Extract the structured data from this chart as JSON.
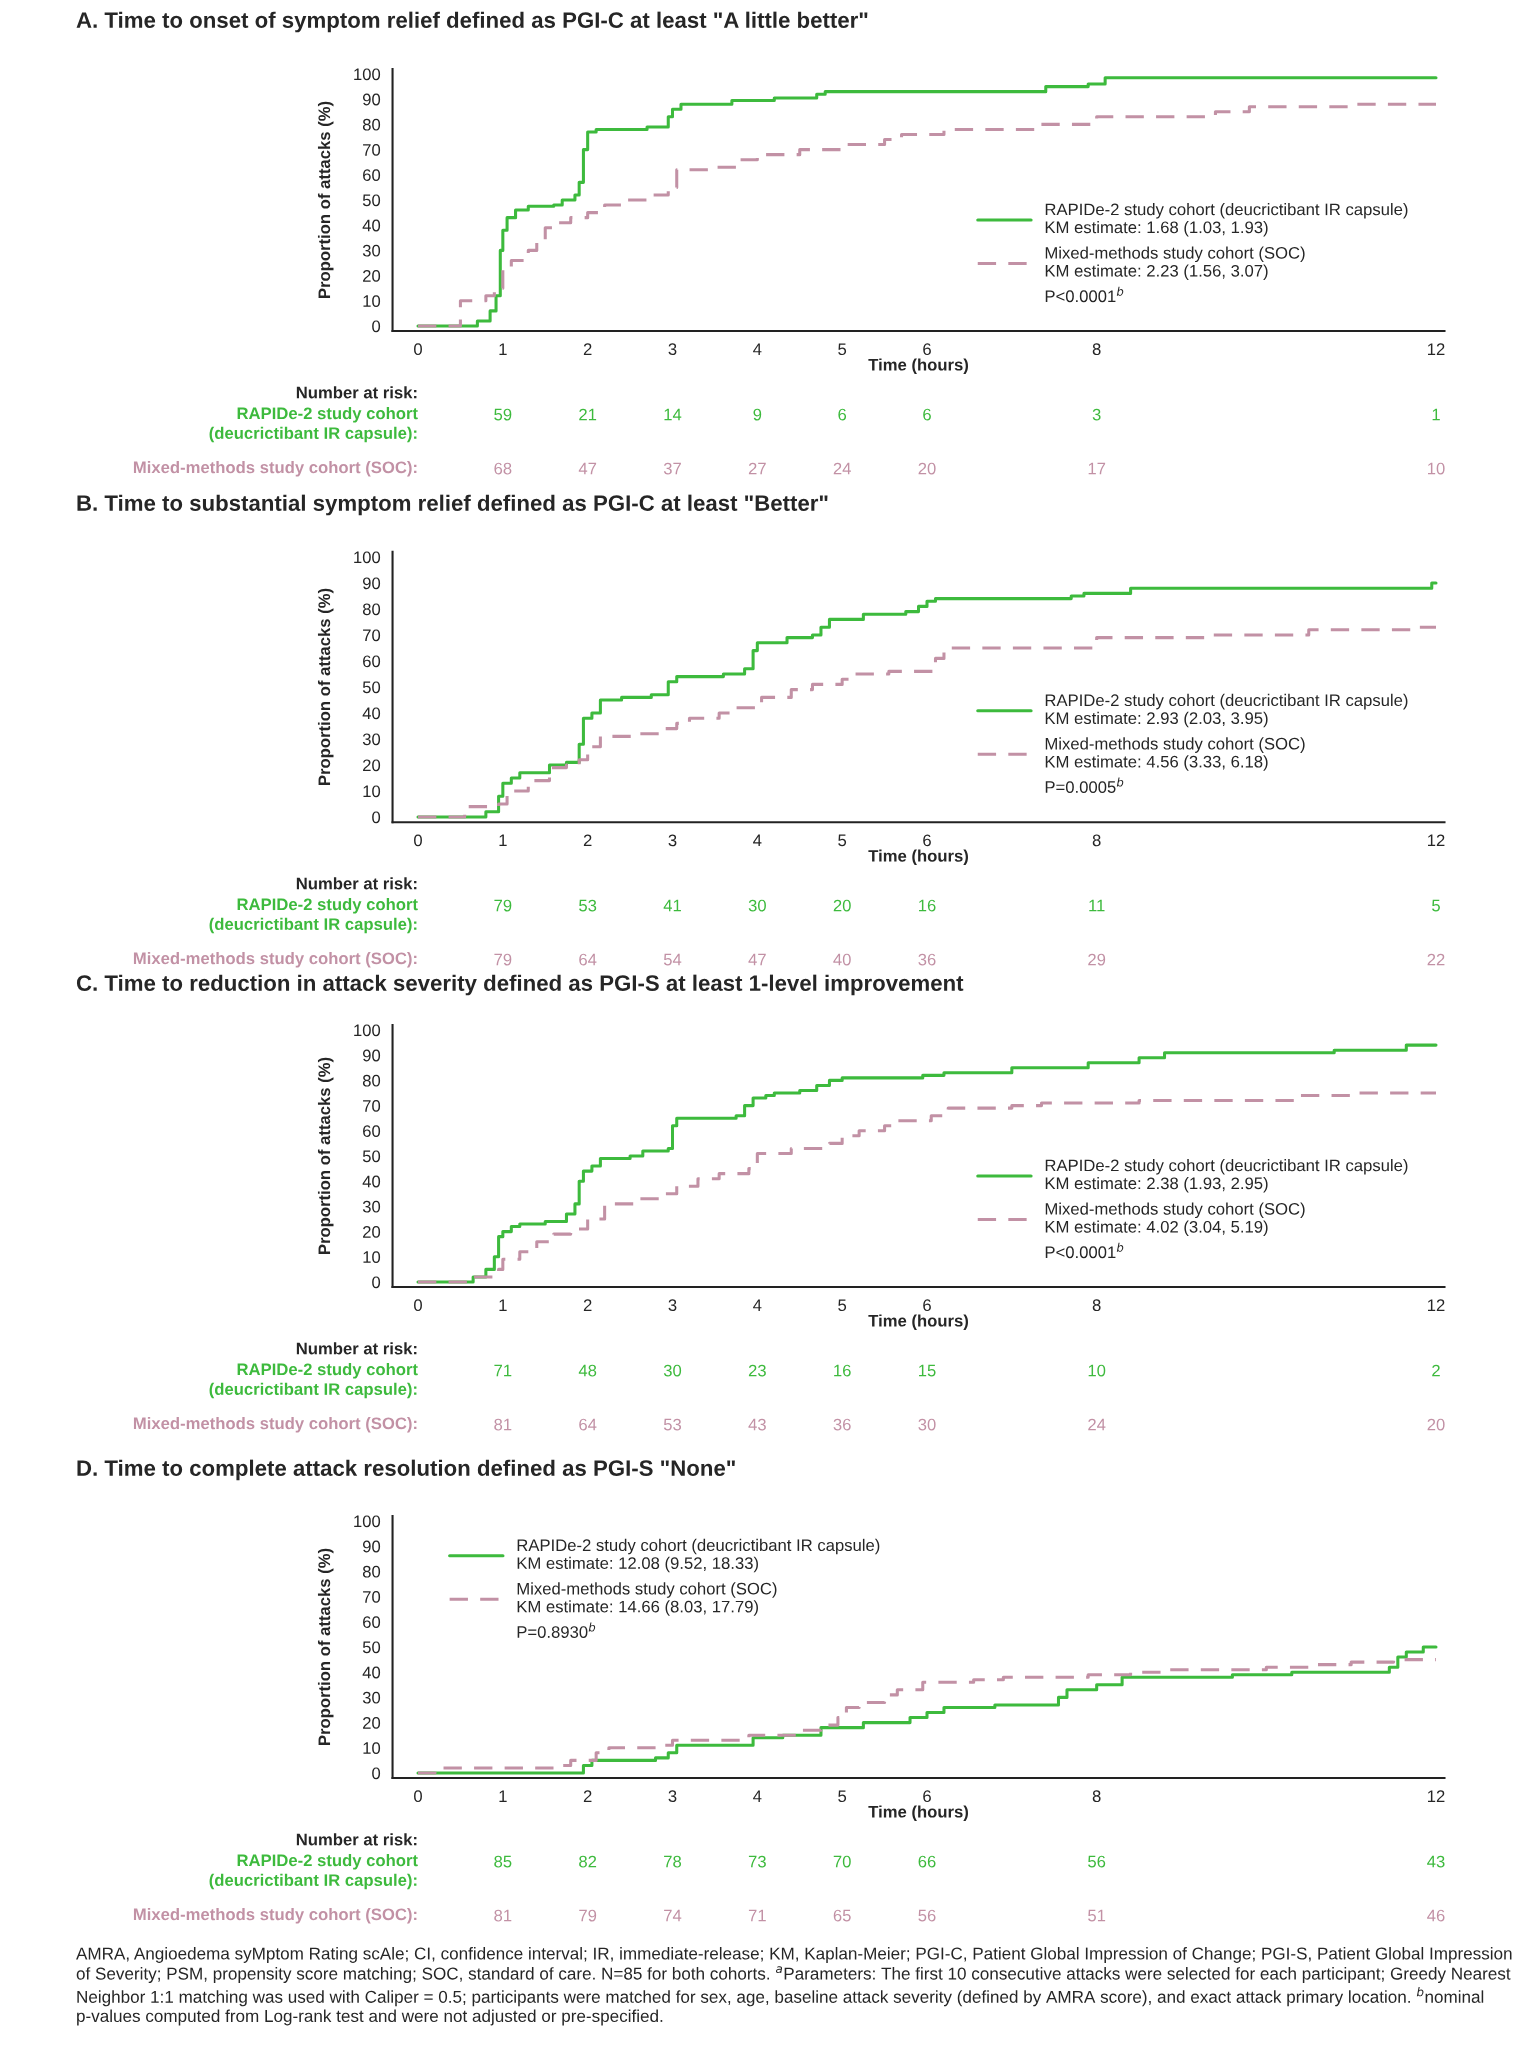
{
  "chart_data": [
    {
      "type": "step",
      "title": "A. Time to onset of symptom relief defined as PGI-C at least \"A little better\"",
      "xlabel": "Time (hours)",
      "ylabel": "Proportion of attacks (%)",
      "xlim": [
        -0.3,
        12.1
      ],
      "xticks": [
        0,
        1,
        2,
        3,
        4,
        5,
        6,
        8,
        12
      ],
      "ylim": [
        -2,
        102
      ],
      "yticks": [
        0,
        10,
        20,
        30,
        40,
        50,
        60,
        70,
        80,
        90,
        100
      ],
      "grid": false,
      "legend": "lower right",
      "series": [
        {
          "name": "RAPIDe-2 study cohort (deucrictibant IR capsule)",
          "color": "#3dba3d",
          "line_style": "solid",
          "x": [
            0,
            0.6,
            0.7,
            0.85,
            0.92,
            0.97,
            1.0,
            1.05,
            1.15,
            1.3,
            1.6,
            1.7,
            1.85,
            1.9,
            1.95,
            2.0,
            2.1,
            2.7,
            2.95,
            3.0,
            3.1,
            3.7,
            4.2,
            4.7,
            4.8,
            7.4,
            7.9,
            8.1,
            12
          ],
          "values": [
            0,
            0,
            2,
            6,
            12,
            30,
            38,
            43,
            46,
            47.5,
            48,
            50,
            52,
            57,
            70,
            77,
            78,
            79,
            83,
            86,
            88,
            89.5,
            90.5,
            92,
            93,
            95,
            96,
            98.5,
            98.5
          ]
        },
        {
          "name": "Mixed-methods study cohort (SOC)",
          "color": "#c291a5",
          "line_style": "dashed",
          "x": [
            0,
            0.5,
            0.8,
            0.9,
            1.0,
            1.1,
            1.3,
            1.4,
            1.5,
            1.6,
            1.8,
            2.0,
            2.2,
            2.4,
            2.7,
            2.95,
            3.05,
            3.5,
            3.8,
            4.0,
            4.5,
            5.0,
            5.5,
            5.7,
            6.2,
            7.3,
            8.0,
            9.4,
            9.8,
            11.0,
            12
          ],
          "values": [
            0,
            10,
            12,
            15,
            23,
            26,
            30,
            34,
            39,
            41,
            43,
            45,
            48,
            50,
            52,
            55,
            62,
            63,
            66,
            68,
            70,
            72,
            74,
            76,
            78,
            80,
            83,
            85,
            87,
            88,
            88
          ]
        }
      ],
      "annotations": [
        "KM estimate: 1.68 (1.03, 1.93)",
        "KM estimate: 2.23 (1.56, 3.07)",
        "P<0.0001$^{b}$",
        "Number at risk:",
        "RAPIDe-2 study cohort\n(deucrictibant IR capsule):",
        "59",
        "21",
        "14",
        "9",
        "6",
        "6",
        "3",
        "1",
        "Mixed-methods study cohort (SOC):",
        "68",
        "47",
        "37",
        "27",
        "24",
        "20",
        "17",
        "10"
      ]
    },
    {
      "type": "step",
      "title": "B. Time to substantial symptom relief defined as PGI-C at least \"Better\"",
      "xlabel": "Time (hours)",
      "ylabel": "Proportion of attacks (%)",
      "xlim": [
        -0.3,
        12.1
      ],
      "xticks": [
        0,
        1,
        2,
        3,
        4,
        5,
        6,
        8,
        12
      ],
      "ylim": [
        -2,
        102
      ],
      "yticks": [
        0,
        10,
        20,
        30,
        40,
        50,
        60,
        70,
        80,
        90,
        100
      ],
      "grid": false,
      "legend": "lower right",
      "series": [
        {
          "name": "RAPIDe-2 study cohort (deucrictibant IR capsule)",
          "color": "#3dba3d",
          "line_style": "solid",
          "x": [
            0,
            0.75,
            0.8,
            0.95,
            1.0,
            1.1,
            1.2,
            1.55,
            1.75,
            1.9,
            1.95,
            2.05,
            2.15,
            2.4,
            2.75,
            2.95,
            3.05,
            3.6,
            3.85,
            3.95,
            4.0,
            4.35,
            4.65,
            4.75,
            4.85,
            5.25,
            5.75,
            5.9,
            6.0,
            6.1,
            7.7,
            7.85,
            8.4,
            11.95,
            12
          ],
          "values": [
            0,
            0,
            2,
            8,
            13,
            15,
            17,
            20,
            21,
            28,
            38,
            40,
            45,
            46,
            47,
            52,
            54,
            55,
            57,
            64,
            67,
            69,
            70,
            73,
            76,
            78,
            79,
            81,
            83,
            84,
            85,
            86,
            88,
            90,
            90
          ]
        },
        {
          "name": "Mixed-methods study cohort (SOC)",
          "color": "#c291a5",
          "line_style": "dashed",
          "x": [
            0,
            0.55,
            0.95,
            1.05,
            1.3,
            1.55,
            1.75,
            1.9,
            2.0,
            2.15,
            2.6,
            2.9,
            3.05,
            3.2,
            3.55,
            3.75,
            4.05,
            4.4,
            4.65,
            5.0,
            5.1,
            5.55,
            6.1,
            6.2,
            8.0,
            9.3,
            10.5,
            11.8,
            12
          ],
          "values": [
            0,
            4,
            5,
            10,
            14,
            19,
            20,
            22,
            27,
            31,
            32,
            34,
            36,
            38,
            40,
            42,
            46,
            49,
            51,
            53,
            55,
            56,
            61,
            65,
            69,
            70,
            72,
            73,
            73
          ]
        }
      ],
      "annotations": [
        "KM estimate: 2.93 (2.03, 3.95)",
        "KM estimate: 4.56 (3.33, 6.18)",
        "P=0.0005$^{b}$",
        "Number at risk:",
        "RAPIDe-2 study cohort\n(deucrictibant IR capsule):",
        "79",
        "53",
        "41",
        "30",
        "20",
        "16",
        "11",
        "5",
        "Mixed-methods study cohort (SOC):",
        "79",
        "64",
        "54",
        "47",
        "40",
        "36",
        "29",
        "22"
      ]
    },
    {
      "type": "step",
      "title": "C. Time to reduction in attack severity defined as PGI-S at least 1-level improvement",
      "xlabel": "Time (hours)",
      "ylabel": "Proportion of attacks (%)",
      "xlim": [
        -0.3,
        12.1
      ],
      "xticks": [
        0,
        1,
        2,
        3,
        4,
        5,
        6,
        8,
        12
      ],
      "ylim": [
        -2,
        102
      ],
      "yticks": [
        0,
        10,
        20,
        30,
        40,
        50,
        60,
        70,
        80,
        90,
        100
      ],
      "grid": false,
      "legend": "lower right",
      "series": [
        {
          "name": "RAPIDe-2 study cohort (deucrictibant IR capsule)",
          "color": "#3dba3d",
          "line_style": "solid",
          "x": [
            0,
            0.6,
            0.65,
            0.8,
            0.9,
            0.95,
            1.0,
            1.1,
            1.2,
            1.5,
            1.75,
            1.85,
            1.9,
            1.95,
            2.05,
            2.15,
            2.5,
            2.65,
            2.95,
            3.0,
            3.05,
            3.75,
            3.85,
            3.95,
            4.1,
            4.2,
            4.5,
            4.7,
            4.85,
            5.0,
            5.95,
            6.2,
            7.0,
            7.9,
            8.5,
            8.8,
            10.8,
            11.65,
            12
          ],
          "values": [
            0,
            0,
            2,
            5,
            10,
            18,
            20,
            22,
            23,
            24,
            27,
            31,
            40,
            44,
            46,
            49,
            50,
            52,
            53,
            62,
            65,
            66,
            70,
            73,
            74,
            75,
            76,
            78,
            80,
            81,
            82,
            83,
            85,
            87,
            89,
            91,
            92,
            94,
            94
          ]
        },
        {
          "name": "Mixed-methods study cohort (SOC)",
          "color": "#c291a5",
          "line_style": "dashed",
          "x": [
            0,
            0.6,
            0.95,
            1.0,
            1.2,
            1.4,
            1.6,
            1.8,
            2.0,
            2.2,
            2.55,
            2.9,
            3.05,
            3.3,
            3.55,
            3.9,
            4.0,
            4.4,
            4.85,
            5.0,
            5.2,
            5.5,
            5.6,
            6.05,
            6.25,
            7.0,
            7.35,
            8.5,
            10.4,
            11.05,
            12
          ],
          "values": [
            0,
            2,
            5,
            9,
            12,
            16,
            19,
            21,
            25,
            31,
            33,
            35,
            38,
            41,
            43,
            45,
            51,
            53,
            55,
            58,
            60,
            62,
            64,
            66,
            69,
            70,
            71,
            72,
            74,
            75,
            75
          ]
        }
      ],
      "annotations": [
        "KM estimate: 2.38 (1.93, 2.95)",
        "KM estimate: 4.02 (3.04, 5.19)",
        "P<0.0001$^{b}$",
        "Number at risk:",
        "RAPIDe-2 study cohort\n(deucrictibant IR capsule):",
        "71",
        "48",
        "30",
        "23",
        "16",
        "15",
        "10",
        "2",
        "Mixed-methods study cohort (SOC):",
        "81",
        "64",
        "53",
        "43",
        "36",
        "30",
        "24",
        "20"
      ]
    },
    {
      "type": "step",
      "title": "D. Time to complete attack resolution defined as PGI-S \"None\"",
      "xlabel": "Time (hours)",
      "ylabel": "Proportion of attacks (%)",
      "xlim": [
        -0.3,
        12.1
      ],
      "xticks": [
        0,
        1,
        2,
        3,
        4,
        5,
        6,
        8,
        12
      ],
      "ylim": [
        -2,
        102
      ],
      "yticks": [
        0,
        10,
        20,
        30,
        40,
        50,
        60,
        70,
        80,
        90,
        100
      ],
      "grid": false,
      "legend": "upper left",
      "series": [
        {
          "name": "RAPIDe-2 study cohort (deucrictibant IR capsule)",
          "color": "#3dba3d",
          "line_style": "solid",
          "x": [
            0,
            1.95,
            2.05,
            2.8,
            2.95,
            3.05,
            3.95,
            4.3,
            4.75,
            5.25,
            5.8,
            6.0,
            6.2,
            6.8,
            7.55,
            7.65,
            8.0,
            8.3,
            9.6,
            10.3,
            11.45,
            11.55,
            11.65,
            11.85,
            12
          ],
          "values": [
            0,
            3,
            5,
            6,
            8,
            11,
            14,
            15,
            18,
            20,
            22,
            24,
            26,
            27,
            30,
            33,
            35,
            38,
            39,
            40,
            42,
            46,
            48,
            50,
            50
          ]
        },
        {
          "name": "Mixed-methods study cohort (SOC)",
          "color": "#c291a5",
          "line_style": "dashed",
          "x": [
            0,
            0.2,
            1.7,
            1.8,
            2.1,
            2.25,
            2.9,
            3.0,
            3.9,
            4.5,
            4.75,
            4.95,
            5.05,
            5.2,
            5.5,
            5.65,
            5.95,
            6.55,
            6.9,
            7.9,
            8.4,
            8.8,
            10.0,
            10.5,
            11.0,
            11.5,
            12
          ],
          "values": [
            0,
            2,
            3,
            5,
            8,
            10,
            11,
            13,
            15,
            17,
            19,
            22,
            26,
            28,
            31,
            33,
            36,
            37,
            38,
            39,
            40,
            41,
            42,
            43,
            44,
            45,
            45
          ]
        }
      ],
      "annotations": [
        "KM estimate: 12.08 (9.52, 18.33)",
        "KM estimate: 14.66 (8.03, 17.79)",
        "P=0.8930$^{b}$",
        "Number at risk:",
        "RAPIDe-2 study cohort\n(deucrictibant IR capsule):",
        "85",
        "82",
        "78",
        "73",
        "70",
        "66",
        "56",
        "43",
        "Mixed-methods study cohort (SOC):",
        "81",
        "79",
        "74",
        "71",
        "65",
        "56",
        "51",
        "46",
        "AMRA, Angioedema syMptom Rating scAle; CI, confidence interval; IR, immediate-release; KM, Kaplan-Meier; PGI-C, Patient Global Impression of Change; PGI-S, Patient Global Impression of Severity; PSM, propensity score matching; SOC, standard of care. N=85 for both cohorts. $^{a}$Parameters: The first 10 consecutive attacks were selected for each participant; Greedy Nearest Neighbor 1:1 matching was used with Caliper = 0.5; participants were matched for sex, age, baseline attack severity (defined by AMRA score), and exact attack primary location. $^{b}$nominal p-values computed from Log-rank test and were not adjusted or pre-specified."
      ]
    }
  ]
}
